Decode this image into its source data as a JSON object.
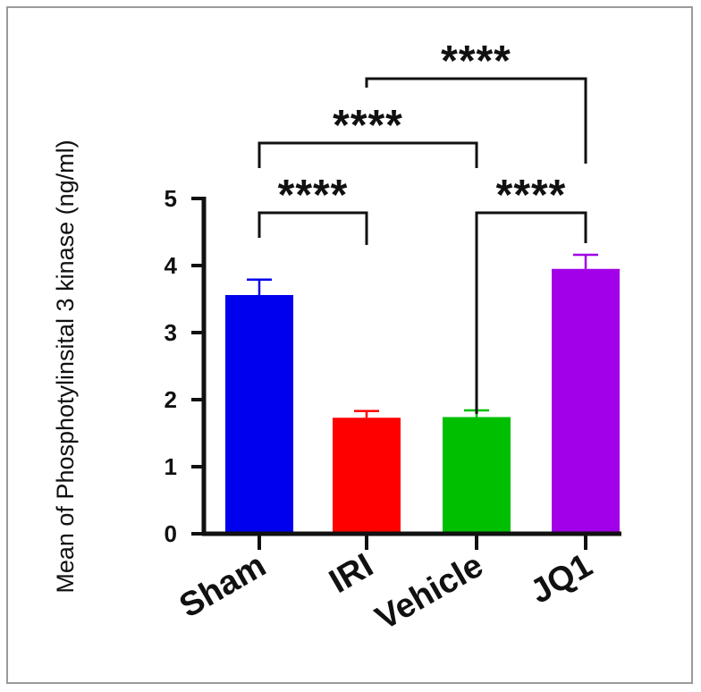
{
  "chart_data": {
    "type": "bar",
    "categories": [
      "Sham",
      "IRI",
      "Vehicle",
      "JQ1"
    ],
    "values": [
      3.56,
      1.73,
      1.74,
      3.95
    ],
    "errors": [
      0.23,
      0.1,
      0.1,
      0.21
    ],
    "colors": [
      "#0000ee",
      "#ff0000",
      "#00bf00",
      "#a100e8"
    ],
    "ylabel": "Mean of Phosphotylinsital 3 kinase (ng/ml)",
    "xlabel": "",
    "title": "",
    "ylim": [
      0,
      5
    ],
    "yticks": [
      "0",
      "1",
      "2",
      "3",
      "4",
      "5"
    ],
    "significance": [
      {
        "from": "Sham",
        "to": "IRI",
        "label": "****"
      },
      {
        "from": "Vehicle",
        "to": "JQ1",
        "label": "****"
      },
      {
        "from": "Sham",
        "to": "Vehicle",
        "label": "****"
      },
      {
        "from": "IRI",
        "to": "JQ1",
        "label": "****"
      }
    ],
    "grid": false,
    "legend": "none"
  }
}
